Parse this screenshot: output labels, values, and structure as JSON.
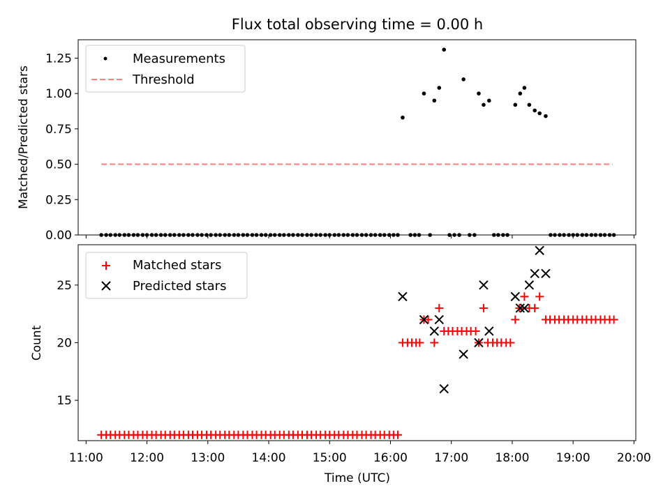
{
  "title": "Flux total observing time = 0.00 h",
  "chart_data": [
    {
      "type": "scatter",
      "ylabel": "Matched/Predicted stars",
      "xlabel": "",
      "ylim": [
        0,
        1.38
      ],
      "yticks": [
        0.0,
        0.25,
        0.5,
        0.75,
        1.0,
        1.25
      ],
      "yticklabels": [
        "0.00",
        "0.25",
        "0.50",
        "0.75",
        "1.00",
        "1.25"
      ],
      "legend_position": "top-left",
      "grid": false,
      "series": [
        {
          "name": "Measurements",
          "marker": "dot",
          "color": "#000000",
          "points_hours": [
            [
              11.25,
              0
            ],
            [
              11.33,
              0
            ],
            [
              11.4,
              0
            ],
            [
              11.48,
              0
            ],
            [
              11.55,
              0
            ],
            [
              11.63,
              0
            ],
            [
              11.7,
              0
            ],
            [
              11.78,
              0
            ],
            [
              11.85,
              0
            ],
            [
              11.93,
              0
            ],
            [
              12.0,
              0
            ],
            [
              12.08,
              0
            ],
            [
              12.15,
              0
            ],
            [
              12.23,
              0
            ],
            [
              12.3,
              0
            ],
            [
              12.38,
              0
            ],
            [
              12.45,
              0
            ],
            [
              12.53,
              0
            ],
            [
              12.6,
              0
            ],
            [
              12.68,
              0
            ],
            [
              12.75,
              0
            ],
            [
              12.83,
              0
            ],
            [
              12.9,
              0
            ],
            [
              12.98,
              0
            ],
            [
              13.05,
              0
            ],
            [
              13.13,
              0
            ],
            [
              13.2,
              0
            ],
            [
              13.28,
              0
            ],
            [
              13.35,
              0
            ],
            [
              13.43,
              0
            ],
            [
              13.5,
              0
            ],
            [
              13.58,
              0
            ],
            [
              13.65,
              0
            ],
            [
              13.73,
              0
            ],
            [
              13.8,
              0
            ],
            [
              13.88,
              0
            ],
            [
              13.95,
              0
            ],
            [
              14.03,
              0
            ],
            [
              14.1,
              0
            ],
            [
              14.18,
              0
            ],
            [
              14.25,
              0
            ],
            [
              14.33,
              0
            ],
            [
              14.4,
              0
            ],
            [
              14.48,
              0
            ],
            [
              14.55,
              0
            ],
            [
              14.63,
              0
            ],
            [
              14.7,
              0
            ],
            [
              14.78,
              0
            ],
            [
              14.85,
              0
            ],
            [
              14.93,
              0
            ],
            [
              15.0,
              0
            ],
            [
              15.08,
              0
            ],
            [
              15.15,
              0
            ],
            [
              15.23,
              0
            ],
            [
              15.3,
              0
            ],
            [
              15.38,
              0
            ],
            [
              15.45,
              0
            ],
            [
              15.53,
              0
            ],
            [
              15.6,
              0
            ],
            [
              15.68,
              0
            ],
            [
              15.75,
              0
            ],
            [
              15.83,
              0
            ],
            [
              15.9,
              0
            ],
            [
              15.98,
              0
            ],
            [
              16.05,
              0
            ],
            [
              16.12,
              0
            ],
            [
              16.2,
              0.83
            ],
            [
              16.33,
              0
            ],
            [
              16.4,
              0
            ],
            [
              16.47,
              0
            ],
            [
              16.55,
              1.0
            ],
            [
              16.65,
              0
            ],
            [
              16.72,
              0.95
            ],
            [
              16.8,
              1.04
            ],
            [
              16.88,
              1.31
            ],
            [
              16.97,
              0
            ],
            [
              17.05,
              0
            ],
            [
              17.13,
              0
            ],
            [
              17.2,
              1.1
            ],
            [
              17.3,
              0
            ],
            [
              17.38,
              0
            ],
            [
              17.45,
              1.0
            ],
            [
              17.53,
              0.92
            ],
            [
              17.62,
              0.95
            ],
            [
              17.7,
              0
            ],
            [
              17.77,
              0
            ],
            [
              17.85,
              0
            ],
            [
              17.92,
              0
            ],
            [
              18.05,
              0.92
            ],
            [
              18.13,
              1.0
            ],
            [
              18.2,
              1.04
            ],
            [
              18.28,
              0.92
            ],
            [
              18.37,
              0.88
            ],
            [
              18.45,
              0.86
            ],
            [
              18.55,
              0.84
            ],
            [
              18.63,
              0
            ],
            [
              18.7,
              0
            ],
            [
              18.78,
              0
            ],
            [
              18.85,
              0
            ],
            [
              18.93,
              0
            ],
            [
              19.0,
              0
            ],
            [
              19.07,
              0
            ],
            [
              19.15,
              0
            ],
            [
              19.22,
              0
            ],
            [
              19.3,
              0
            ],
            [
              19.37,
              0
            ],
            [
              19.45,
              0
            ],
            [
              19.52,
              0
            ],
            [
              19.6,
              0
            ],
            [
              19.67,
              0
            ]
          ]
        },
        {
          "name": "Threshold",
          "marker": "dashed-line",
          "color": "#ff7f7f",
          "points_hours": [
            [
              11.25,
              0.5
            ],
            [
              19.65,
              0.5
            ]
          ]
        }
      ]
    },
    {
      "type": "scatter",
      "ylabel": "Count",
      "xlabel": "Time (UTC)",
      "ylim": [
        11.5,
        28.5
      ],
      "yticks": [
        15,
        20,
        25
      ],
      "yticklabels": [
        "15",
        "20",
        "25"
      ],
      "xlim_hours": [
        10.87,
        20.03
      ],
      "xticks_hours": [
        11,
        12,
        13,
        14,
        15,
        16,
        17,
        18,
        19,
        20
      ],
      "xticklabels": [
        "11:00",
        "12:00",
        "13:00",
        "14:00",
        "15:00",
        "16:00",
        "17:00",
        "18:00",
        "19:00",
        "20:00"
      ],
      "legend_position": "top-left",
      "grid": false,
      "series": [
        {
          "name": "Matched stars",
          "marker": "plus",
          "color": "#ff0000",
          "points_hours": [
            [
              11.25,
              12
            ],
            [
              11.33,
              12
            ],
            [
              11.4,
              12
            ],
            [
              11.48,
              12
            ],
            [
              11.55,
              12
            ],
            [
              11.63,
              12
            ],
            [
              11.7,
              12
            ],
            [
              11.78,
              12
            ],
            [
              11.85,
              12
            ],
            [
              11.93,
              12
            ],
            [
              12.0,
              12
            ],
            [
              12.08,
              12
            ],
            [
              12.15,
              12
            ],
            [
              12.23,
              12
            ],
            [
              12.3,
              12
            ],
            [
              12.38,
              12
            ],
            [
              12.45,
              12
            ],
            [
              12.53,
              12
            ],
            [
              12.6,
              12
            ],
            [
              12.68,
              12
            ],
            [
              12.75,
              12
            ],
            [
              12.83,
              12
            ],
            [
              12.9,
              12
            ],
            [
              12.98,
              12
            ],
            [
              13.05,
              12
            ],
            [
              13.13,
              12
            ],
            [
              13.2,
              12
            ],
            [
              13.28,
              12
            ],
            [
              13.35,
              12
            ],
            [
              13.43,
              12
            ],
            [
              13.5,
              12
            ],
            [
              13.58,
              12
            ],
            [
              13.65,
              12
            ],
            [
              13.73,
              12
            ],
            [
              13.8,
              12
            ],
            [
              13.88,
              12
            ],
            [
              13.95,
              12
            ],
            [
              14.03,
              12
            ],
            [
              14.1,
              12
            ],
            [
              14.18,
              12
            ],
            [
              14.25,
              12
            ],
            [
              14.33,
              12
            ],
            [
              14.4,
              12
            ],
            [
              14.48,
              12
            ],
            [
              14.55,
              12
            ],
            [
              14.63,
              12
            ],
            [
              14.7,
              12
            ],
            [
              14.78,
              12
            ],
            [
              14.85,
              12
            ],
            [
              14.93,
              12
            ],
            [
              15.0,
              12
            ],
            [
              15.08,
              12
            ],
            [
              15.15,
              12
            ],
            [
              15.23,
              12
            ],
            [
              15.3,
              12
            ],
            [
              15.38,
              12
            ],
            [
              15.45,
              12
            ],
            [
              15.53,
              12
            ],
            [
              15.6,
              12
            ],
            [
              15.68,
              12
            ],
            [
              15.75,
              12
            ],
            [
              15.83,
              12
            ],
            [
              15.9,
              12
            ],
            [
              15.98,
              12
            ],
            [
              16.05,
              12
            ],
            [
              16.12,
              12
            ],
            [
              16.2,
              20
            ],
            [
              16.28,
              20
            ],
            [
              16.35,
              20
            ],
            [
              16.42,
              20
            ],
            [
              16.48,
              20
            ],
            [
              16.55,
              22
            ],
            [
              16.62,
              22
            ],
            [
              16.72,
              20
            ],
            [
              16.8,
              23
            ],
            [
              16.88,
              21
            ],
            [
              16.95,
              21
            ],
            [
              17.02,
              21
            ],
            [
              17.1,
              21
            ],
            [
              17.17,
              21
            ],
            [
              17.25,
              21
            ],
            [
              17.32,
              21
            ],
            [
              17.4,
              21
            ],
            [
              17.45,
              20
            ],
            [
              17.53,
              23
            ],
            [
              17.6,
              20
            ],
            [
              17.68,
              20
            ],
            [
              17.75,
              20
            ],
            [
              17.82,
              20
            ],
            [
              17.9,
              20
            ],
            [
              17.97,
              20
            ],
            [
              18.05,
              22
            ],
            [
              18.12,
              23
            ],
            [
              18.2,
              24
            ],
            [
              18.28,
              23
            ],
            [
              18.37,
              23
            ],
            [
              18.45,
              24
            ],
            [
              18.55,
              22
            ],
            [
              18.62,
              22
            ],
            [
              18.7,
              22
            ],
            [
              18.77,
              22
            ],
            [
              18.85,
              22
            ],
            [
              18.92,
              22
            ],
            [
              19.0,
              22
            ],
            [
              19.07,
              22
            ],
            [
              19.15,
              22
            ],
            [
              19.22,
              22
            ],
            [
              19.3,
              22
            ],
            [
              19.37,
              22
            ],
            [
              19.45,
              22
            ],
            [
              19.52,
              22
            ],
            [
              19.6,
              22
            ],
            [
              19.67,
              22
            ]
          ]
        },
        {
          "name": "Predicted stars",
          "marker": "x",
          "color": "#000000",
          "points_hours": [
            [
              16.2,
              24
            ],
            [
              16.55,
              22
            ],
            [
              16.72,
              21
            ],
            [
              16.8,
              22
            ],
            [
              16.88,
              16
            ],
            [
              17.2,
              19
            ],
            [
              17.45,
              20
            ],
            [
              17.53,
              25
            ],
            [
              17.62,
              21
            ],
            [
              18.05,
              24
            ],
            [
              18.13,
              23
            ],
            [
              18.2,
              23
            ],
            [
              18.28,
              25
            ],
            [
              18.37,
              26
            ],
            [
              18.45,
              28
            ],
            [
              18.55,
              26
            ]
          ]
        }
      ]
    }
  ]
}
